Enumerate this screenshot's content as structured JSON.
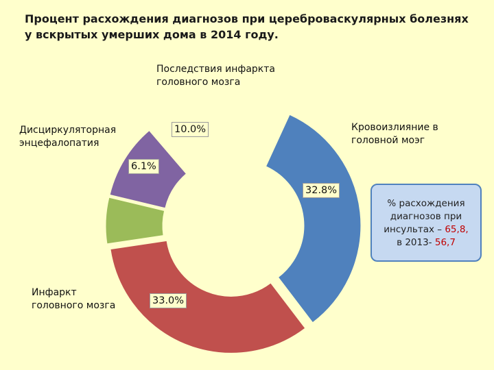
{
  "chart_data": {
    "type": "donut",
    "title": "Процент расхождения диагнозов при цереброваскулярных болезнях у вскрытых умерших дома в 2014 году.",
    "categories": [
      "Кровоизлияние в головной мозг",
      "Инфаркт головного мозга",
      "Дисциркуляторная энцефалопатия",
      "Последствия инфаркта головного мозга"
    ],
    "values": [
      32.8,
      33.0,
      6.1,
      10.0
    ],
    "value_labels": [
      "32.8%",
      "33.0%",
      "6.1%",
      "10.0%"
    ],
    "colors": [
      "#4F81BD",
      "#C0504D",
      "#9BBB59",
      "#8064A2"
    ],
    "exploded": true
  },
  "labels": {
    "hemorrhage": "Кровоизлияние в\nголовной моэг",
    "infarct": "Инфаркт\nголовного мозга",
    "encephalopathy": "Дисциркуляторная\nэнцефалопатия",
    "after_infarct": "Последствия инфаркта\nголовного мозга"
  },
  "note": {
    "line1": "% расхождения",
    "line2": "диагнозов при",
    "line3_prefix": "инсультах – ",
    "line3_value": "65,8,",
    "line4_prefix": "в 2013- ",
    "line4_value": "56,7",
    "accent": "#C00000"
  }
}
